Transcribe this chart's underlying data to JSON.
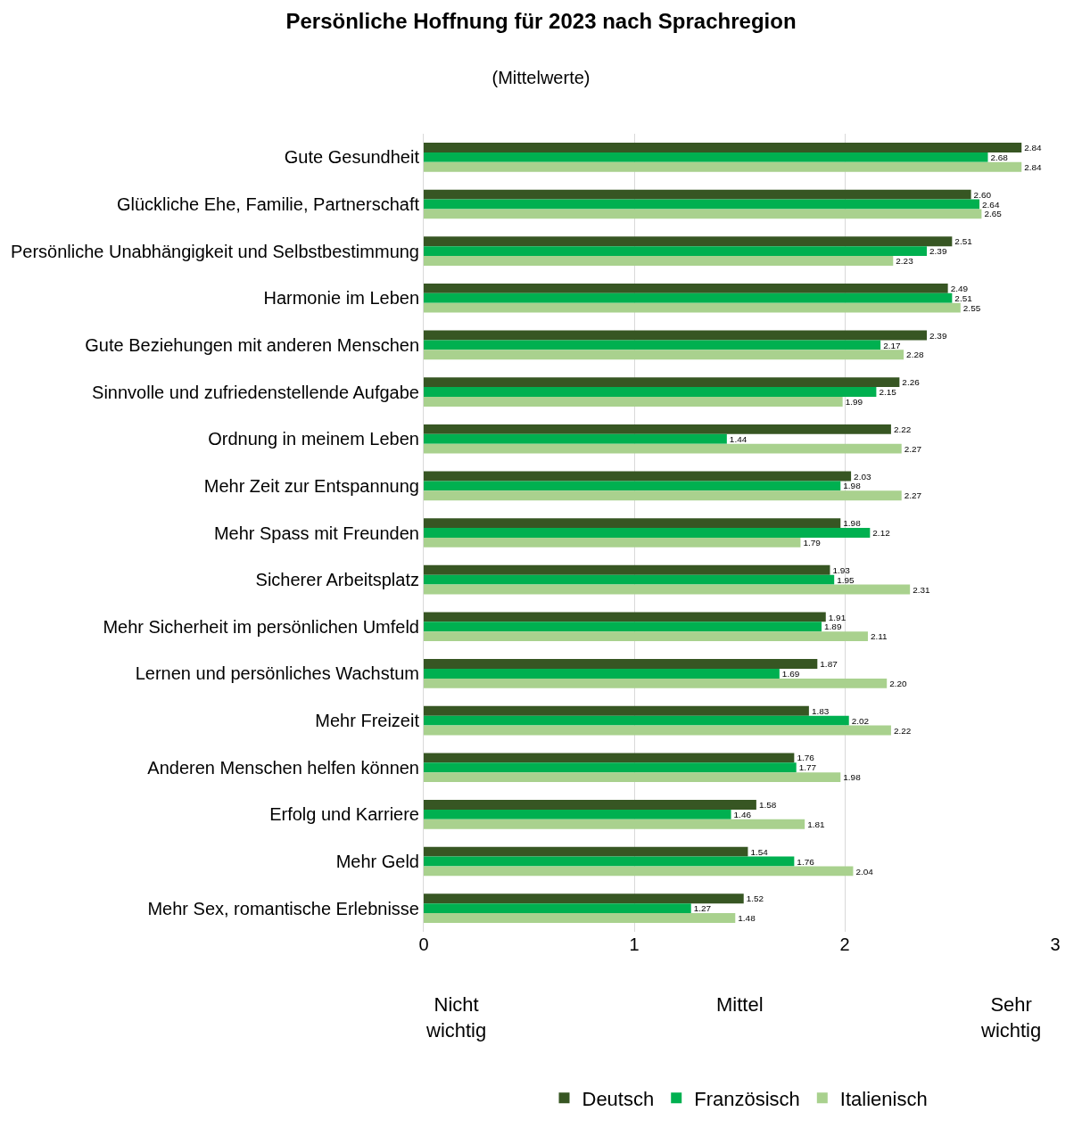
{
  "chart_data": {
    "type": "bar",
    "orientation": "horizontal",
    "title": "Persönliche Hoffnung für 2023 nach Sprachregion",
    "subtitle": "(Mittelwerte)",
    "categories": [
      "Gute Gesundheit",
      "Glückliche Ehe, Familie, Partnerschaft",
      "Persönliche Unabhängigkeit und Selbstbestimmung",
      "Harmonie im Leben",
      "Gute Beziehungen mit anderen Menschen",
      "Sinnvolle und zufriedenstellende Aufgabe",
      "Ordnung in meinem Leben",
      "Mehr Zeit zur Entspannung",
      "Mehr Spass mit Freunden",
      "Sicherer Arbeitsplatz",
      "Mehr Sicherheit im persönlichen Umfeld",
      "Lernen und persönliches Wachstum",
      "Mehr Freizeit",
      "Anderen Menschen helfen können",
      "Erfolg und Karriere",
      "Mehr Geld",
      "Mehr Sex, romantische Erlebnisse"
    ],
    "series": [
      {
        "name": "Deutsch",
        "color": "#375623",
        "values": [
          2.84,
          2.6,
          2.51,
          2.49,
          2.39,
          2.26,
          2.22,
          2.03,
          1.98,
          1.93,
          1.91,
          1.87,
          1.83,
          1.76,
          1.58,
          1.54,
          1.52
        ],
        "value_labels": [
          "2.84",
          "2.60",
          "2.51",
          "2.49",
          "2.39",
          "2.26",
          "2.22",
          "2.03",
          "1.98",
          "1.93",
          "1.91",
          "1.87",
          "1.83",
          "1.76",
          "1.58",
          "1.54",
          "1.52"
        ]
      },
      {
        "name": "Französisch",
        "color": "#00b050",
        "values": [
          2.68,
          2.64,
          2.39,
          2.51,
          2.17,
          2.15,
          1.44,
          1.98,
          2.12,
          1.95,
          1.89,
          1.69,
          2.02,
          1.77,
          1.46,
          1.76,
          1.27
        ],
        "value_labels": [
          "2.68",
          "2.64",
          "2.39",
          "2.51",
          "2.17",
          "2.15",
          "1.44",
          "1.98",
          "2.12",
          "1.95",
          "1.89",
          "1.69",
          "2.02",
          "1.77",
          "1.46",
          "1.76",
          "1.27"
        ]
      },
      {
        "name": "Italienisch",
        "color": "#a9d18e",
        "values": [
          2.84,
          2.65,
          2.23,
          2.55,
          2.28,
          1.99,
          2.27,
          2.27,
          1.79,
          2.31,
          2.11,
          2.2,
          2.22,
          1.98,
          1.81,
          2.04,
          1.48
        ],
        "value_labels": [
          "2.84",
          "2.65",
          "2.23",
          "2.55",
          "2.28",
          "1.99",
          "2.27",
          "2.27",
          "1.79",
          "2.31",
          "2.11",
          "2.20",
          "2.22",
          "1.98",
          "1.81",
          "2.04",
          "1.48"
        ]
      }
    ],
    "xlim": [
      0,
      3
    ],
    "xticks": [
      0,
      1,
      2,
      3
    ],
    "grid": "x",
    "legend": "bottom",
    "annotations": [
      "Nicht wichtig",
      "Mittel",
      "Sehr wichtig"
    ]
  }
}
